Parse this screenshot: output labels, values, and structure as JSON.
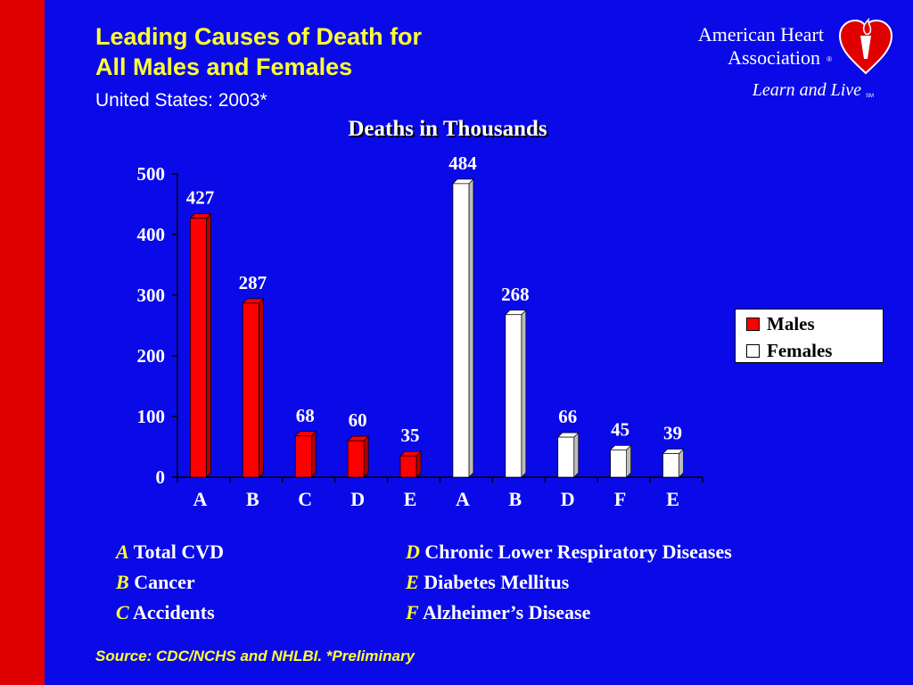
{
  "header": {
    "title_line1": "Leading Causes of Death for",
    "title_line2": "All Males and Females",
    "subtitle": "United States: 2003*"
  },
  "logo": {
    "name_line1": "American Heart",
    "name_line2": "Association",
    "registered": "®",
    "tagline": "Learn and Live",
    "service_mark": "SM",
    "icon": "heart-torch-icon"
  },
  "colors": {
    "background": "#0a0ae8",
    "side_bar": "#e00000",
    "title": "#ffff33",
    "males": "#ff0000",
    "females": "#ffffff"
  },
  "chart_data": {
    "type": "bar",
    "title": "Deaths in Thousands",
    "categories": [
      "A",
      "B",
      "C",
      "D",
      "E",
      "A",
      "B",
      "D",
      "F",
      "E"
    ],
    "series": [
      {
        "name": "Males",
        "values": [
          427,
          287,
          68,
          60,
          35,
          null,
          null,
          null,
          null,
          null
        ]
      },
      {
        "name": "Females",
        "values": [
          null,
          null,
          null,
          null,
          null,
          484,
          268,
          66,
          45,
          39
        ]
      }
    ],
    "data_labels": [
      "427",
      "287",
      "68",
      "60",
      "35",
      "484",
      "268",
      "66",
      "45",
      "39"
    ],
    "y_ticks": [
      "0",
      "100",
      "200",
      "300",
      "400",
      "500"
    ],
    "ylim": [
      0,
      500
    ],
    "grid": false,
    "legend_position": "right"
  },
  "key": {
    "left": [
      {
        "letter": "A",
        "text": "Total CVD"
      },
      {
        "letter": "B",
        "text": "Cancer"
      },
      {
        "letter": "C",
        "text": "Accidents"
      }
    ],
    "right": [
      {
        "letter": "D",
        "text": "Chronic Lower Respiratory Diseases"
      },
      {
        "letter": "E",
        "text": "Diabetes Mellitus"
      },
      {
        "letter": "F",
        "text": "Alzheimer’s Disease"
      }
    ]
  },
  "footer": {
    "source": "Source: CDC/NCHS and NHLBI.  *Preliminary"
  }
}
